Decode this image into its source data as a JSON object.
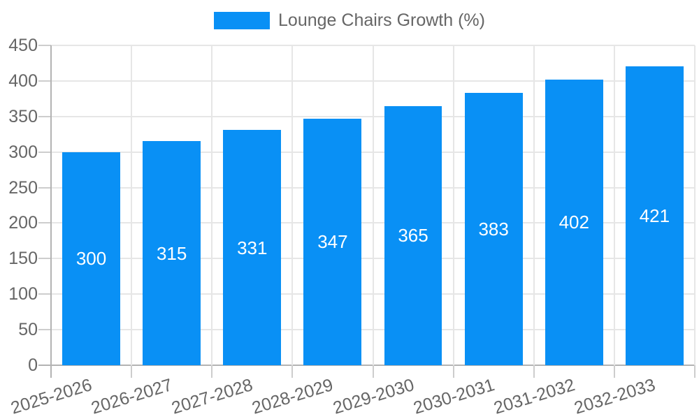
{
  "chart_data": {
    "type": "bar",
    "title": "",
    "legend_position": "top",
    "categories": [
      "2025-2026",
      "2026-2027",
      "2027-2028",
      "2028-2029",
      "2029-2030",
      "2030-2031",
      "2031-2032",
      "2032-2033"
    ],
    "series": [
      {
        "name": "Lounge Chairs Growth (%)",
        "color": "#0990f5",
        "values": [
          300,
          315,
          331,
          347,
          365,
          383,
          402,
          421
        ]
      }
    ],
    "value_labels_shown": true,
    "ylim": [
      0,
      450
    ],
    "yticks": [
      0,
      50,
      100,
      150,
      200,
      250,
      300,
      350,
      400,
      450
    ],
    "grid": true,
    "xlabel": "",
    "ylabel": "",
    "style": {
      "bar_color": "#0990f5",
      "value_label_color": "#ffffff",
      "axis_text_color": "#666666",
      "gridline_color": "#e6e6e6",
      "axis_line_color": "#b3b3b3",
      "tick_mark_color": "#cdcdcd"
    }
  }
}
